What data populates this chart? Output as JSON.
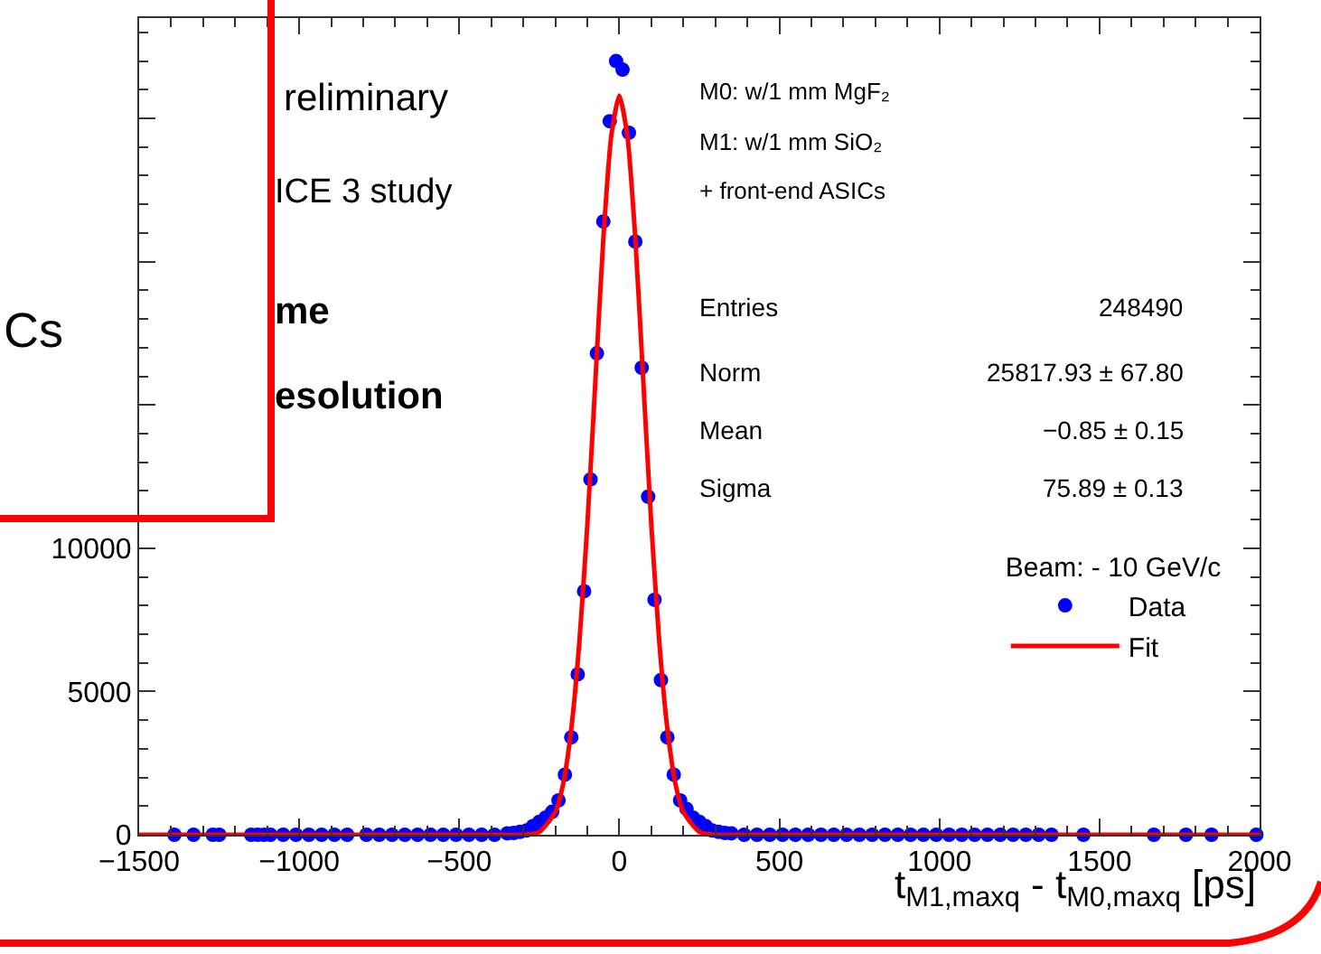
{
  "chart_data": {
    "type": "scatter",
    "xlabel": "t$_{M1,maxq}$ - t$_{M0,maxq}$ [ps]",
    "legend_title": "Beam: - 10 GeV/c",
    "xlim": [
      -1500,
      2000
    ],
    "xticks": [
      -1500,
      -1000,
      -500,
      0,
      500,
      1000,
      1500,
      2000
    ],
    "ylim": [
      0,
      28500
    ],
    "yticks": [
      0,
      5000,
      10000,
      {
        "value": 15000,
        "label": null
      },
      {
        "value": 20000,
        "label": null
      },
      {
        "value": 25000,
        "label": null
      }
    ],
    "legend": "right",
    "marker": "circle",
    "series": [
      {
        "name": "Data",
        "color": "#0000ff",
        "x": [
          -1390,
          -1330,
          -1270,
          -1250,
          -1150,
          -1130,
          -1110,
          -1090,
          -1050,
          -1010,
          -970,
          -930,
          -890,
          -850,
          -790,
          -750,
          -710,
          -670,
          -630,
          -590,
          -550,
          -510,
          -470,
          -430,
          -390,
          -350,
          -330,
          -310,
          -290,
          -270,
          -250,
          -230,
          -210,
          -190,
          -170,
          -150,
          -130,
          -110,
          -90,
          -70,
          -50,
          -30,
          -10,
          10,
          30,
          50,
          70,
          90,
          110,
          130,
          150,
          170,
          190,
          210,
          230,
          250,
          270,
          290,
          310,
          330,
          350,
          390,
          430,
          470,
          510,
          550,
          590,
          630,
          670,
          710,
          750,
          790,
          830,
          870,
          910,
          950,
          990,
          1030,
          1070,
          1110,
          1150,
          1190,
          1230,
          1270,
          1310,
          1350,
          1450,
          1670,
          1770,
          1850,
          1990
        ],
        "values": [
          0,
          0,
          0,
          0,
          0,
          0,
          0,
          0,
          0,
          0,
          0,
          0,
          0,
          0,
          0,
          0,
          0,
          0,
          0,
          0,
          0,
          0,
          0,
          0,
          0,
          50,
          60,
          100,
          150,
          300,
          450,
          600,
          800,
          1200,
          2100,
          3400,
          5600,
          8500,
          12400,
          16800,
          21400,
          24900,
          27000,
          26700,
          24500,
          20700,
          16300,
          11800,
          8200,
          5400,
          3400,
          2100,
          1200,
          900,
          600,
          450,
          300,
          150,
          100,
          60,
          50,
          0,
          0,
          0,
          0,
          0,
          0,
          0,
          0,
          0,
          0,
          0,
          0,
          0,
          0,
          0,
          0,
          0,
          0,
          0,
          0,
          0,
          0,
          0,
          0,
          0,
          0,
          0,
          0,
          0,
          0
        ]
      },
      {
        "name": "Fit",
        "type": "line",
        "color": "#ff0000",
        "marker": "none",
        "line_style": "solid",
        "x": [
          -1500,
          -400,
          -300,
          -250,
          -200,
          -175,
          -150,
          -125,
          -100,
          -75,
          -50,
          -25,
          0,
          25,
          50,
          75,
          100,
          125,
          150,
          175,
          200,
          250,
          300,
          400,
          2000
        ],
        "values": [
          0,
          0,
          0,
          100,
          800,
          1800,
          3700,
          6700,
          10800,
          15800,
          20800,
          24400,
          25800,
          24400,
          20800,
          15800,
          10800,
          6700,
          3700,
          1800,
          800,
          100,
          0,
          0,
          0
        ]
      }
    ],
    "annotations": [
      "M0: w/1 mm MgF₂",
      "M1: w/1 mm SiO₂",
      "+ front-end ASICs",
      "Entries",
      "248490",
      "Norm",
      "25817.93 ± 67.80",
      "Mean",
      "−0.85 ± 0.15",
      "Sigma",
      "75.89 ± 0.13",
      "reliminary",
      "ICE 3 study",
      "Cs",
      "me",
      "esolution"
    ]
  }
}
